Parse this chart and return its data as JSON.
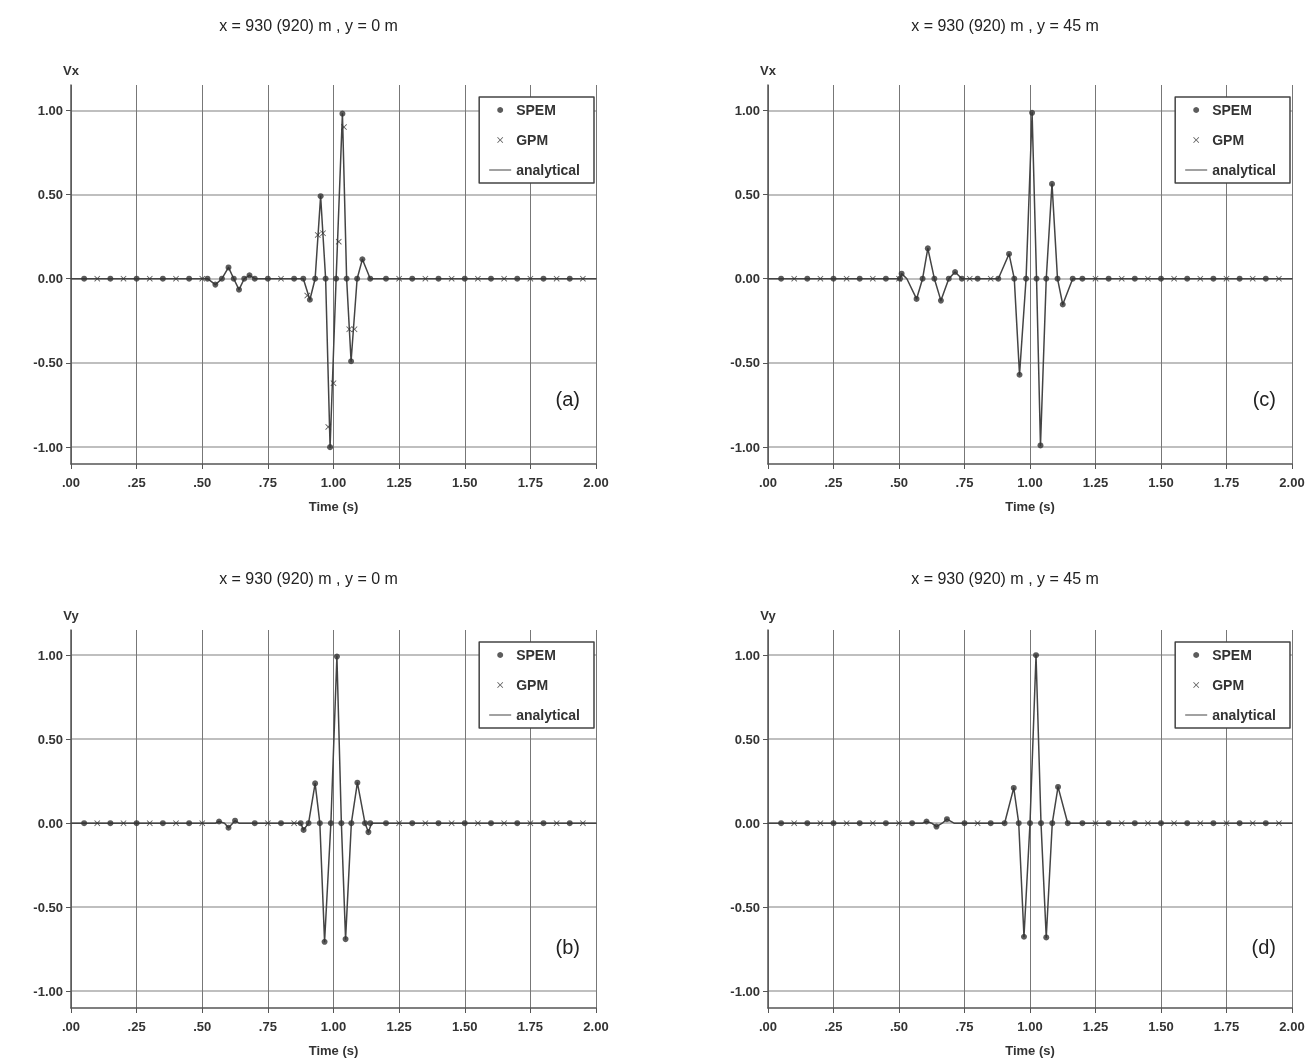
{
  "chart_data": [
    {
      "type": "line",
      "title": "x = 930 (920) m , y = 0 m",
      "xlabel": "Time (s)",
      "ylabel": "Vx",
      "xlim": [
        0,
        2
      ],
      "ylim": [
        -1.1,
        1.15
      ],
      "xticks": [
        {
          "value": 0,
          "label": ".00"
        },
        {
          "value": 0.25,
          "label": ".25"
        },
        {
          "value": 0.5,
          "label": ".50"
        },
        {
          "value": 0.75,
          "label": ".75"
        },
        {
          "value": 1,
          "label": "1.00"
        },
        {
          "value": 1.25,
          "label": "1.25"
        },
        {
          "value": 1.5,
          "label": "1.50"
        },
        {
          "value": 1.75,
          "label": "1.75"
        },
        {
          "value": 2,
          "label": "2.00"
        }
      ],
      "yticks": [
        {
          "value": -1,
          "label": "-1.00"
        },
        {
          "value": -0.5,
          "label": "-0.50"
        },
        {
          "value": 0,
          "label": "0.00"
        },
        {
          "value": 0.5,
          "label": "0.50"
        },
        {
          "value": 1,
          "label": "1.00"
        }
      ],
      "grid": true,
      "legend": "top right",
      "annotations": [
        "(a)"
      ],
      "series": [
        {
          "name": "SPEM",
          "type": "scatter",
          "marker": "circle",
          "color": "#333333",
          "x": [
            0.05,
            0.15,
            0.25,
            0.35,
            0.45,
            0.52,
            0.55,
            0.575,
            0.6,
            0.62,
            0.64,
            0.66,
            0.68,
            0.7,
            0.75,
            0.85,
            0.885,
            0.91,
            0.93,
            0.951,
            0.97,
            0.987,
            1.01,
            1.034,
            1.05,
            1.067,
            1.09,
            1.11,
            1.14,
            1.2,
            1.3,
            1.4,
            1.5,
            1.6,
            1.7,
            1.8,
            1.9
          ],
          "values": [
            0,
            0,
            0,
            0,
            0,
            0,
            -0.035,
            0,
            0.067,
            0,
            -0.065,
            0,
            0.02,
            0,
            0,
            0,
            0,
            -0.125,
            0,
            0.49,
            0,
            -1.0,
            0,
            0.98,
            0,
            -0.49,
            0,
            0.115,
            0,
            0,
            0,
            0,
            0,
            0,
            0,
            0,
            0
          ]
        },
        {
          "name": "GPM",
          "type": "scatter",
          "marker": "cross",
          "color": "#333333",
          "x": [
            0.1,
            0.2,
            0.3,
            0.4,
            0.5,
            0.8,
            0.9,
            0.94,
            0.96,
            0.98,
            1.0,
            1.02,
            1.04,
            1.06,
            1.08,
            1.25,
            1.35,
            1.45,
            1.55,
            1.65,
            1.75,
            1.85,
            1.95
          ],
          "values": [
            0,
            0,
            0,
            0,
            0,
            0,
            -0.1,
            0.26,
            0.27,
            -0.88,
            -0.62,
            0.22,
            0.9,
            -0.3,
            -0.3,
            0,
            0,
            0,
            0,
            0,
            0,
            0,
            0
          ]
        },
        {
          "name": "analytical",
          "type": "line",
          "marker": "none",
          "color": "#444444",
          "x": [
            0,
            0.52,
            0.55,
            0.575,
            0.6,
            0.62,
            0.64,
            0.66,
            0.68,
            0.7,
            0.885,
            0.91,
            0.93,
            0.951,
            0.97,
            0.987,
            1.01,
            1.034,
            1.05,
            1.067,
            1.09,
            1.11,
            1.14,
            2
          ],
          "values": [
            0,
            0,
            -0.035,
            0,
            0.067,
            0,
            -0.065,
            0,
            0.02,
            0,
            0,
            -0.125,
            0,
            0.49,
            0,
            -1.0,
            0,
            0.98,
            0,
            -0.49,
            0,
            0.115,
            0,
            0
          ]
        }
      ]
    },
    {
      "type": "line",
      "title": "x = 930 (920) m , y = 45 m",
      "xlabel": "Time (s)",
      "ylabel": "Vx",
      "xlim": [
        0,
        2
      ],
      "ylim": [
        -1.1,
        1.15
      ],
      "xticks": [
        {
          "value": 0,
          "label": ".00"
        },
        {
          "value": 0.25,
          "label": ".25"
        },
        {
          "value": 0.5,
          "label": ".50"
        },
        {
          "value": 0.75,
          "label": ".75"
        },
        {
          "value": 1,
          "label": "1.00"
        },
        {
          "value": 1.25,
          "label": "1.25"
        },
        {
          "value": 1.5,
          "label": "1.50"
        },
        {
          "value": 1.75,
          "label": "1.75"
        },
        {
          "value": 2,
          "label": "2.00"
        }
      ],
      "yticks": [
        {
          "value": -1,
          "label": "-1.00"
        },
        {
          "value": -0.5,
          "label": "-0.50"
        },
        {
          "value": 0,
          "label": "0.00"
        },
        {
          "value": 0.5,
          "label": "0.50"
        },
        {
          "value": 1,
          "label": "1.00"
        }
      ],
      "grid": true,
      "legend": "top right",
      "annotations": [
        "(c)"
      ],
      "series": [
        {
          "name": "SPEM",
          "type": "scatter",
          "marker": "circle",
          "color": "#333333",
          "x": [
            0.05,
            0.15,
            0.25,
            0.35,
            0.45,
            0.504,
            0.51,
            0.567,
            0.59,
            0.61,
            0.635,
            0.66,
            0.69,
            0.714,
            0.74,
            0.8,
            0.879,
            0.92,
            0.94,
            0.96,
            0.985,
            1.008,
            1.025,
            1.04,
            1.062,
            1.084,
            1.105,
            1.125,
            1.163,
            1.2,
            1.3,
            1.4,
            1.5,
            1.6,
            1.7,
            1.8,
            1.9
          ],
          "values": [
            0,
            0,
            0,
            0,
            0,
            0,
            0.03,
            -0.12,
            0,
            0.18,
            0,
            -0.13,
            0,
            0.04,
            0,
            0,
            0,
            0.147,
            0,
            -0.57,
            0,
            0.985,
            0,
            -0.99,
            0,
            0.563,
            0,
            -0.153,
            0,
            0,
            0,
            0,
            0,
            0,
            0,
            0,
            0
          ]
        },
        {
          "name": "GPM",
          "type": "scatter",
          "marker": "cross",
          "color": "#333333",
          "x": [
            0.1,
            0.2,
            0.3,
            0.4,
            0.5,
            0.77,
            0.85,
            1.25,
            1.35,
            1.45,
            1.55,
            1.65,
            1.75,
            1.85,
            1.95
          ],
          "values": [
            0,
            0,
            0,
            0,
            0,
            0,
            0,
            0,
            0,
            0,
            0,
            0,
            0,
            0,
            0
          ]
        },
        {
          "name": "analytical",
          "type": "line",
          "marker": "none",
          "color": "#444444",
          "x": [
            0,
            0.504,
            0.51,
            0.53,
            0.567,
            0.59,
            0.61,
            0.635,
            0.66,
            0.69,
            0.714,
            0.74,
            0.879,
            0.92,
            0.94,
            0.96,
            0.985,
            1.008,
            1.025,
            1.04,
            1.062,
            1.084,
            1.105,
            1.125,
            1.163,
            2
          ],
          "values": [
            0,
            0,
            0.03,
            0,
            -0.12,
            0,
            0.18,
            0,
            -0.13,
            0,
            0.04,
            0,
            0,
            0.147,
            0,
            -0.57,
            0,
            0.985,
            0,
            -0.99,
            0,
            0.563,
            0,
            -0.153,
            0,
            0
          ]
        }
      ]
    },
    {
      "type": "line",
      "title": "x = 930 (920) m , y = 0 m",
      "xlabel": "Time (s)",
      "ylabel": "Vy",
      "xlim": [
        0,
        2
      ],
      "ylim": [
        -1.1,
        1.15
      ],
      "xticks": [
        {
          "value": 0,
          "label": ".00"
        },
        {
          "value": 0.25,
          "label": ".25"
        },
        {
          "value": 0.5,
          "label": ".50"
        },
        {
          "value": 0.75,
          "label": ".75"
        },
        {
          "value": 1,
          "label": "1.00"
        },
        {
          "value": 1.25,
          "label": "1.25"
        },
        {
          "value": 1.5,
          "label": "1.50"
        },
        {
          "value": 1.75,
          "label": "1.75"
        },
        {
          "value": 2,
          "label": "2.00"
        }
      ],
      "yticks": [
        {
          "value": -1,
          "label": "-1.00"
        },
        {
          "value": -0.5,
          "label": "-0.50"
        },
        {
          "value": 0,
          "label": "0.00"
        },
        {
          "value": 0.5,
          "label": "0.50"
        },
        {
          "value": 1,
          "label": "1.00"
        }
      ],
      "grid": true,
      "legend": "top right",
      "annotations": [
        "(b)"
      ],
      "series": [
        {
          "name": "SPEM",
          "type": "scatter",
          "marker": "circle",
          "color": "#333333",
          "x": [
            0.05,
            0.15,
            0.25,
            0.35,
            0.45,
            0.564,
            0.6,
            0.625,
            0.7,
            0.8,
            0.875,
            0.886,
            0.905,
            0.93,
            0.948,
            0.966,
            0.99,
            1.013,
            1.03,
            1.046,
            1.068,
            1.091,
            1.12,
            1.133,
            1.14,
            1.2,
            1.3,
            1.4,
            1.5,
            1.6,
            1.7,
            1.8,
            1.9
          ],
          "values": [
            0,
            0,
            0,
            0,
            0,
            0.01,
            -0.027,
            0.015,
            0,
            0,
            0,
            -0.04,
            0,
            0.237,
            0,
            -0.706,
            0,
            0.992,
            0,
            -0.69,
            0,
            0.241,
            0,
            -0.053,
            0,
            0,
            0,
            0,
            0,
            0,
            0,
            0,
            0
          ]
        },
        {
          "name": "GPM",
          "type": "scatter",
          "marker": "cross",
          "color": "#333333",
          "x": [
            0.1,
            0.2,
            0.3,
            0.4,
            0.5,
            0.75,
            0.85,
            1.25,
            1.35,
            1.45,
            1.55,
            1.65,
            1.75,
            1.85,
            1.95
          ],
          "values": [
            0,
            0,
            0,
            0,
            0,
            0,
            0,
            0,
            0,
            0,
            0,
            0,
            0,
            0,
            0
          ]
        },
        {
          "name": "analytical",
          "type": "line",
          "marker": "none",
          "color": "#444444",
          "x": [
            0,
            0.55,
            0.564,
            0.585,
            0.6,
            0.625,
            0.64,
            0.875,
            0.886,
            0.905,
            0.93,
            0.948,
            0.966,
            0.99,
            1.013,
            1.03,
            1.046,
            1.068,
            1.091,
            1.12,
            1.133,
            1.145,
            2
          ],
          "values": [
            0,
            0,
            0.01,
            0,
            -0.027,
            0.015,
            0,
            0,
            -0.04,
            0,
            0.237,
            0,
            -0.706,
            0,
            0.992,
            0,
            -0.69,
            0,
            0.241,
            0,
            -0.053,
            0,
            0
          ]
        }
      ]
    },
    {
      "type": "line",
      "title": "x = 930 (920) m , y = 45 m",
      "xlabel": "Time (s)",
      "ylabel": "Vy",
      "xlim": [
        0,
        2
      ],
      "ylim": [
        -1.1,
        1.15
      ],
      "xticks": [
        {
          "value": 0,
          "label": ".00"
        },
        {
          "value": 0.25,
          "label": ".25"
        },
        {
          "value": 0.5,
          "label": ".50"
        },
        {
          "value": 0.75,
          "label": ".75"
        },
        {
          "value": 1,
          "label": "1.00"
        },
        {
          "value": 1.25,
          "label": "1.25"
        },
        {
          "value": 1.5,
          "label": "1.50"
        },
        {
          "value": 1.75,
          "label": "1.75"
        },
        {
          "value": 2,
          "label": "2.00"
        }
      ],
      "yticks": [
        {
          "value": -1,
          "label": "-1.00"
        },
        {
          "value": -0.5,
          "label": "-0.50"
        },
        {
          "value": 0,
          "label": "0.00"
        },
        {
          "value": 0.5,
          "label": "0.50"
        },
        {
          "value": 1,
          "label": "1.00"
        }
      ],
      "grid": true,
      "legend": "top right",
      "annotations": [
        "(d)"
      ],
      "series": [
        {
          "name": "SPEM",
          "type": "scatter",
          "marker": "circle",
          "color": "#333333",
          "x": [
            0.05,
            0.15,
            0.25,
            0.35,
            0.45,
            0.55,
            0.605,
            0.643,
            0.683,
            0.75,
            0.85,
            0.903,
            0.938,
            0.957,
            0.977,
            1.0,
            1.023,
            1.042,
            1.062,
            1.085,
            1.107,
            1.144,
            1.2,
            1.3,
            1.4,
            1.5,
            1.6,
            1.7,
            1.8,
            1.9
          ],
          "values": [
            0,
            0,
            0,
            0,
            0,
            0,
            0.01,
            -0.02,
            0.024,
            0,
            0,
            0,
            0.21,
            0,
            -0.676,
            0,
            1.0,
            0,
            -0.68,
            0,
            0.216,
            0,
            0,
            0,
            0,
            0,
            0,
            0,
            0,
            0
          ]
        },
        {
          "name": "GPM",
          "type": "scatter",
          "marker": "cross",
          "color": "#333333",
          "x": [
            0.1,
            0.2,
            0.3,
            0.4,
            0.5,
            0.8,
            1.25,
            1.35,
            1.45,
            1.55,
            1.65,
            1.75,
            1.85,
            1.95
          ],
          "values": [
            0,
            0,
            0,
            0,
            0,
            0,
            0,
            0,
            0,
            0,
            0,
            0,
            0,
            0
          ]
        },
        {
          "name": "analytical",
          "type": "line",
          "marker": "none",
          "color": "#444444",
          "x": [
            0,
            0.59,
            0.605,
            0.625,
            0.643,
            0.665,
            0.683,
            0.71,
            0.903,
            0.938,
            0.957,
            0.977,
            1.0,
            1.023,
            1.042,
            1.062,
            1.085,
            1.107,
            1.144,
            2
          ],
          "values": [
            0,
            0,
            0.01,
            0,
            -0.02,
            0,
            0.024,
            0,
            0,
            0.21,
            0,
            -0.676,
            0,
            1.0,
            0,
            -0.68,
            0,
            0.216,
            0,
            0
          ]
        }
      ]
    }
  ]
}
